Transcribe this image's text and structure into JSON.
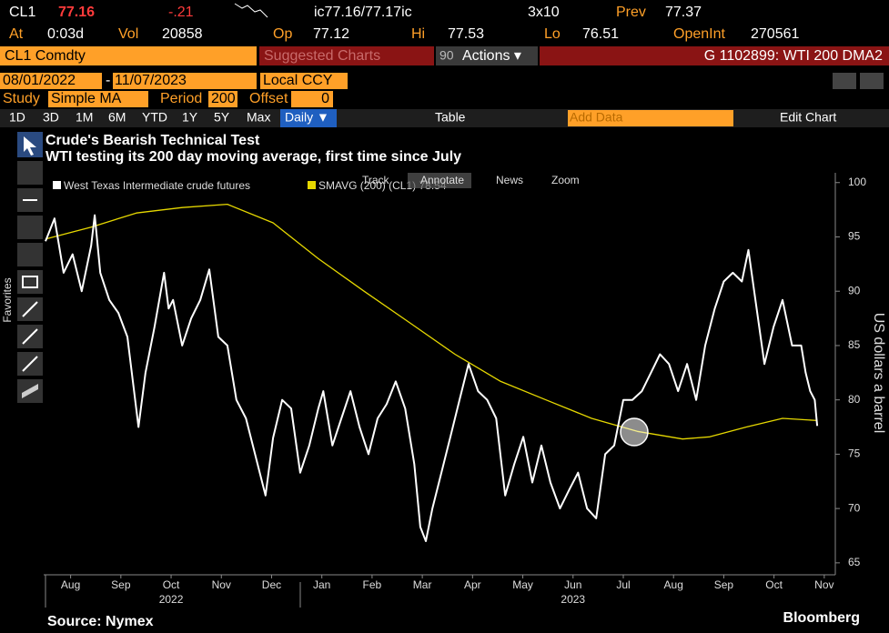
{
  "header": {
    "ticker": "CL1",
    "price": "77.16",
    "change": "-.21",
    "quote": "ic77.16/77.17ic",
    "size": "3x10",
    "prev_label": "Prev",
    "prev": "77.37"
  },
  "stats": [
    {
      "label": "At",
      "value": "0:03d"
    },
    {
      "label": "Vol",
      "value": "20858"
    },
    {
      "label": "Op",
      "value": "77.12"
    },
    {
      "label": "Hi",
      "value": "77.53"
    },
    {
      "label": "Lo",
      "value": "76.51"
    },
    {
      "label": "OpenInt",
      "value": "270561"
    }
  ],
  "toolbar": {
    "security": "CL1 Comdty",
    "suggested": "Suggested Charts",
    "actions_num": "90",
    "actions": "Actions ▾",
    "chart_id": "G 1102899: WTI 200 DMA2"
  },
  "range": {
    "start": "08/01/2022",
    "sep": "-",
    "end": "11/07/2023",
    "currency": "Local CCY"
  },
  "study": {
    "label": "Study",
    "value": "Simple MA",
    "period_label": "Period",
    "period": "200",
    "offset_label": "Offset",
    "offset": "0"
  },
  "periods": [
    "1D",
    "3D",
    "1M",
    "6M",
    "YTD",
    "1Y",
    "5Y",
    "Max"
  ],
  "frequency": "Daily ▼",
  "table": "Table",
  "add_data": "Add Data",
  "edit_chart": "Edit Chart",
  "chart_tools": [
    "Track",
    "Annotate",
    "News",
    "Zoom"
  ],
  "favorites": "Favorites",
  "chart_data": {
    "type": "line",
    "title": "Crude's Bearish Technical Test",
    "subtitle": "WTI testing its 200 day moving average, first time since July",
    "ylabel": "US dollars a barrel",
    "source": "Source: Nymex",
    "brand": "Bloomberg",
    "grid": false,
    "xlim": [
      0,
      15.72
    ],
    "xticks": [
      {
        "value": 0.5,
        "label": "Aug"
      },
      {
        "value": 1.5,
        "label": "Sep"
      },
      {
        "value": 2.5,
        "label": "Oct"
      },
      {
        "value": 3.5,
        "label": "Nov"
      },
      {
        "value": 4.5,
        "label": "Dec"
      },
      {
        "value": 5.5,
        "label": "Jan"
      },
      {
        "value": 6.5,
        "label": "Feb"
      },
      {
        "value": 7.5,
        "label": "Mar"
      },
      {
        "value": 8.5,
        "label": "Apr"
      },
      {
        "value": 9.5,
        "label": "May"
      },
      {
        "value": 10.5,
        "label": "Jun"
      },
      {
        "value": 11.5,
        "label": "Jul"
      },
      {
        "value": 12.5,
        "label": "Aug"
      },
      {
        "value": 13.5,
        "label": "Sep"
      },
      {
        "value": 14.5,
        "label": "Oct"
      },
      {
        "value": 15.5,
        "label": "Nov"
      }
    ],
    "year_labels": [
      {
        "value": 2.5,
        "label": "2022"
      },
      {
        "value": 10.5,
        "label": "2023"
      }
    ],
    "ylim": [
      63.9,
      100.9
    ],
    "yticks": [
      65,
      70,
      75,
      80,
      85,
      90,
      95,
      100
    ],
    "series": [
      {
        "name": "West Texas Intermediate crude futures",
        "color": "#ffffff",
        "x": [
          0,
          0.18,
          0.36,
          0.54,
          0.72,
          0.91,
          0.98,
          1.09,
          1.27,
          1.45,
          1.63,
          1.85,
          1.99,
          2.17,
          2.36,
          2.45,
          2.54,
          2.72,
          2.9,
          3.08,
          3.26,
          3.44,
          3.62,
          3.8,
          3.99,
          4.17,
          4.38,
          4.53,
          4.71,
          4.89,
          5.07,
          5.25,
          5.43,
          5.53,
          5.71,
          5.89,
          6.07,
          6.25,
          6.43,
          6.61,
          6.79,
          6.97,
          7.16,
          7.34,
          7.46,
          7.57,
          7.7,
          7.88,
          8.06,
          8.24,
          8.42,
          8.61,
          8.79,
          8.97,
          9.15,
          9.33,
          9.51,
          9.69,
          9.87,
          10.05,
          10.24,
          10.42,
          10.6,
          10.78,
          10.96,
          11.14,
          11.32,
          11.5,
          11.68,
          11.87,
          12.05,
          12.23,
          12.41,
          12.59,
          12.77,
          12.95,
          13.13,
          13.32,
          13.5,
          13.68,
          13.86,
          13.99,
          14.13,
          14.31,
          14.49,
          14.67,
          14.86,
          15.04,
          15.13,
          15.22,
          15.31,
          15.36
        ],
        "values": [
          94.6,
          96.7,
          91.7,
          93.4,
          90,
          94.2,
          97,
          91.7,
          89.2,
          88,
          85.8,
          77.5,
          82.5,
          86.7,
          91.7,
          88.4,
          89.2,
          85,
          87.5,
          89.2,
          92,
          85.8,
          85,
          80,
          78.3,
          75,
          71.2,
          76.5,
          80,
          79.2,
          73.3,
          75.8,
          79.2,
          80.8,
          75.8,
          78.3,
          80.8,
          77.5,
          75,
          78.3,
          79.6,
          81.7,
          79.2,
          74.1,
          68.3,
          67,
          70,
          73.3,
          76.6,
          80,
          83.3,
          80.8,
          80,
          78.3,
          71.2,
          74.1,
          76.6,
          72.4,
          75.8,
          72.4,
          70,
          71.7,
          73.3,
          70,
          69.1,
          75,
          75.8,
          80,
          80,
          80.8,
          82.5,
          84.2,
          83.3,
          80.8,
          83.3,
          80,
          85,
          88.4,
          90.9,
          91.7,
          90.9,
          93.8,
          89.2,
          83.3,
          86.7,
          89.2,
          85,
          85,
          82.5,
          80.8,
          80,
          77.6
        ]
      },
      {
        "name": "SMAVG (200) (CL1) 78.54",
        "color": "#e6d800",
        "x": [
          0,
          0.91,
          1.81,
          2.72,
          3.62,
          4.53,
          5.43,
          6.34,
          7.25,
          8.15,
          9.06,
          9.96,
          10.87,
          11.78,
          12.68,
          13.22,
          13.95,
          14.67,
          15.36
        ],
        "values": [
          94.8,
          95.9,
          97.2,
          97.7,
          98,
          96.3,
          93,
          90,
          87.1,
          84.2,
          81.7,
          80,
          78.3,
          77.1,
          76.4,
          76.6,
          77.5,
          78.3,
          78.1
        ]
      }
    ]
  }
}
